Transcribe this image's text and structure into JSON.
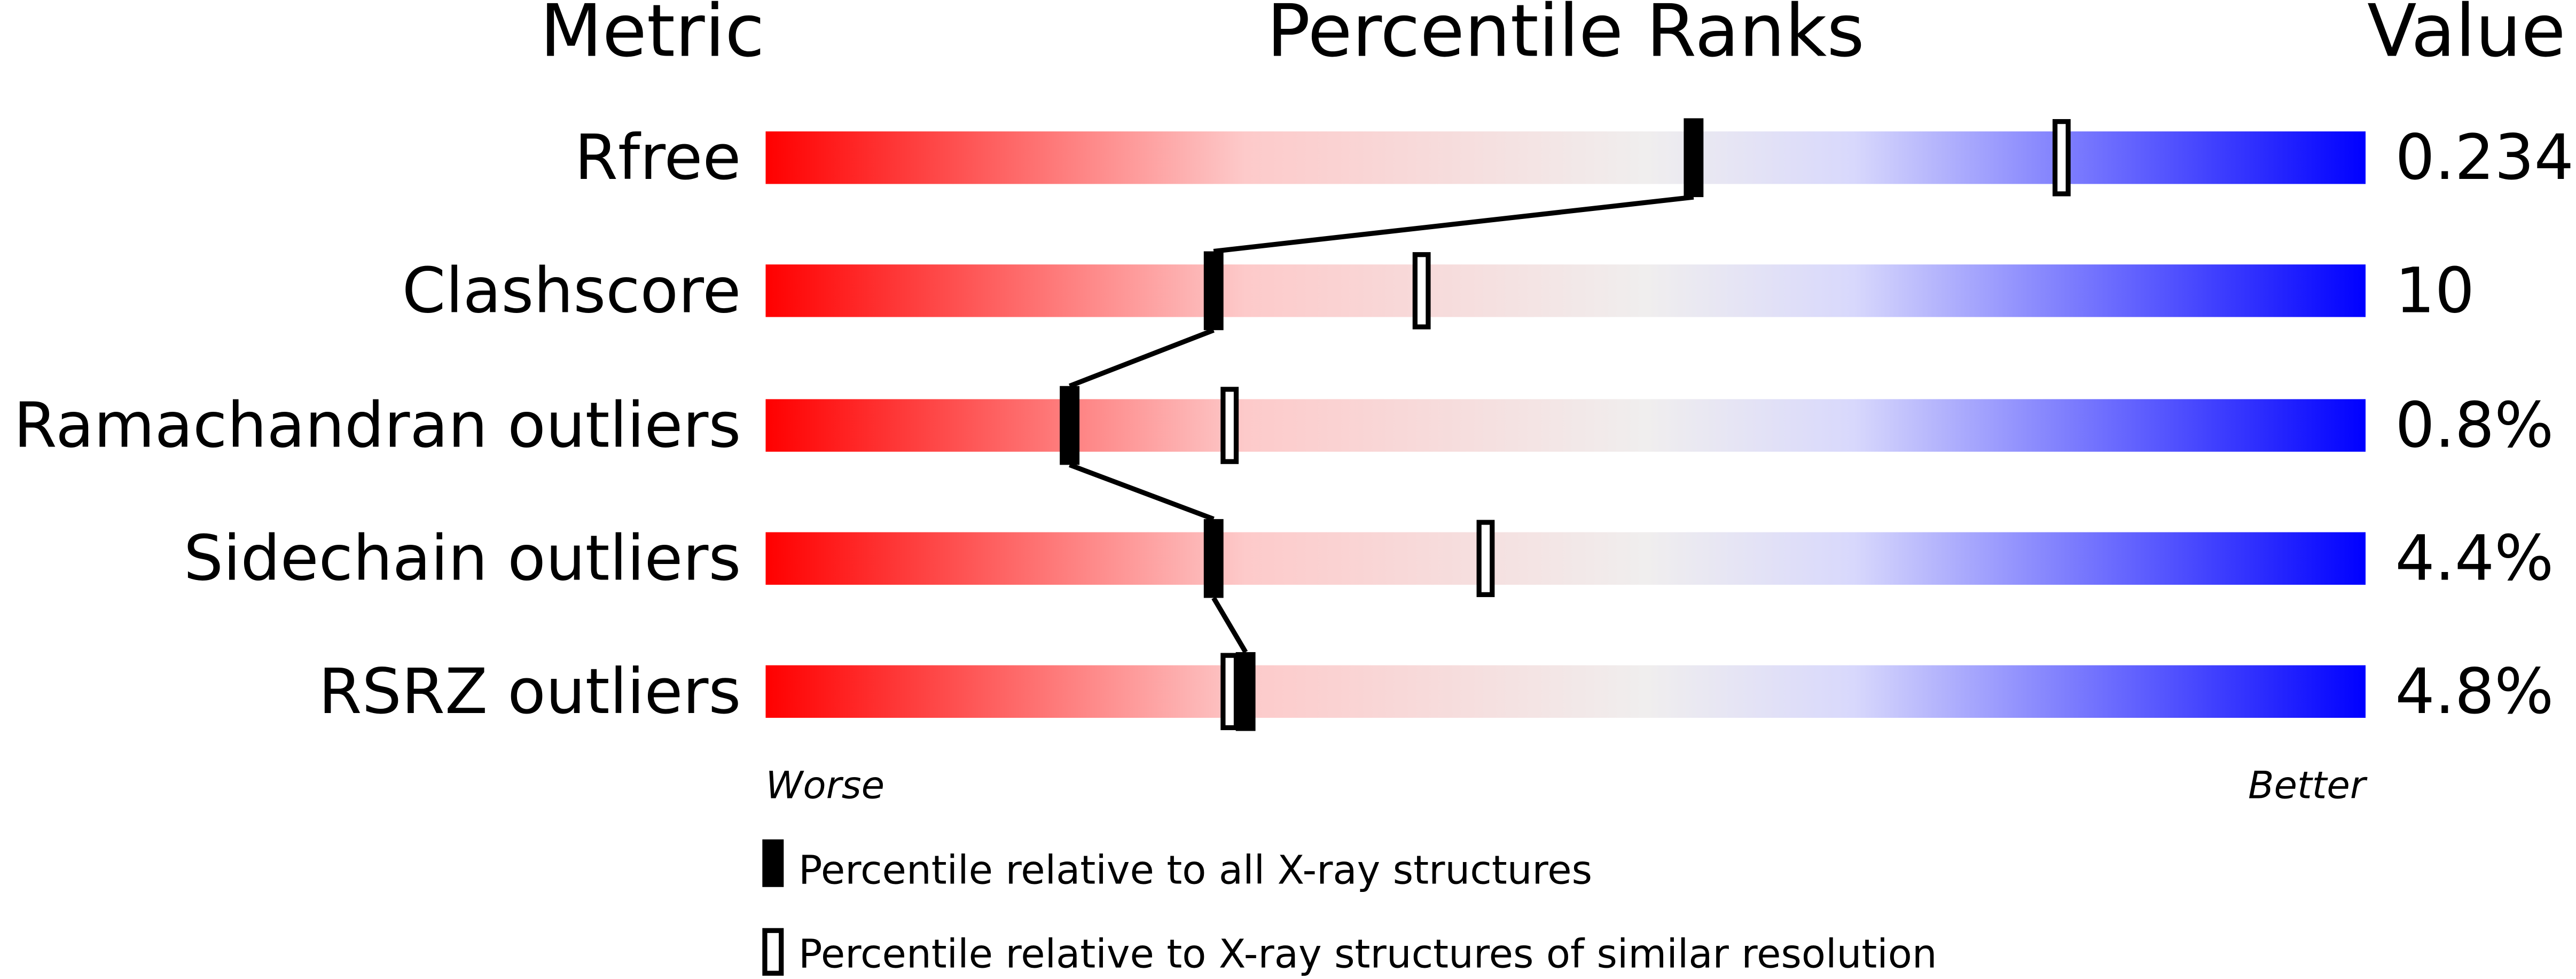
{
  "chart_data": {
    "type": "percentile-rank-bars",
    "headers": {
      "metric": "Metric",
      "ranks": "Percentile Ranks",
      "value": "Value"
    },
    "scale_ends": {
      "left": "Worse",
      "right": "Better"
    },
    "xlim": [
      0,
      100
    ],
    "gradient_colors": [
      "#ff0000",
      "#fdcaca",
      "#f0eeee",
      "#d8d8fc",
      "#0000ff"
    ],
    "metrics": [
      {
        "name": "Rfree",
        "value": "0.234",
        "percentile_all": 58,
        "percentile_similar": 81
      },
      {
        "name": "Clashscore",
        "value": "10",
        "percentile_all": 28,
        "percentile_similar": 41
      },
      {
        "name": "Ramachandran outliers",
        "value": "0.8%",
        "percentile_all": 19,
        "percentile_similar": 29
      },
      {
        "name": "Sidechain outliers",
        "value": "4.4%",
        "percentile_all": 28,
        "percentile_similar": 45
      },
      {
        "name": "RSRZ outliers",
        "value": "4.8%",
        "percentile_all": 30,
        "percentile_similar": 29
      }
    ],
    "legend": [
      {
        "marker": "filled",
        "label": "Percentile relative to all X-ray structures"
      },
      {
        "marker": "open",
        "label": "Percentile relative to X-ray structures of similar resolution"
      }
    ]
  }
}
